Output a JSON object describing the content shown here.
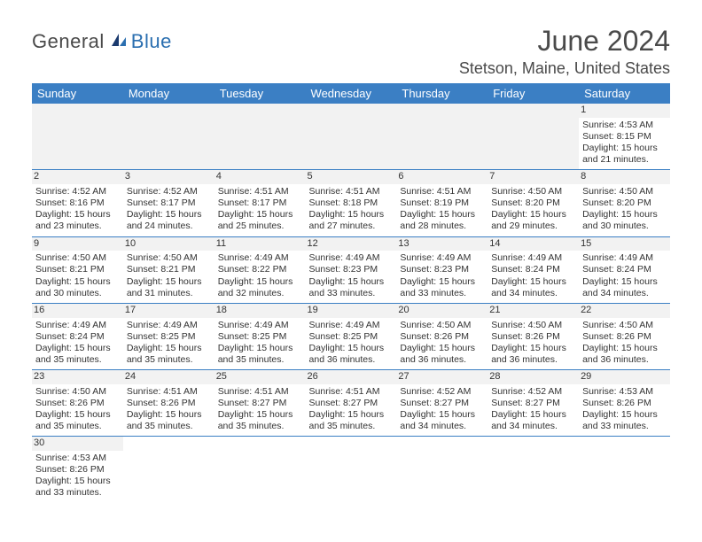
{
  "logo": {
    "text1": "General",
    "text2": "Blue"
  },
  "title": "June 2024",
  "location": "Stetson, Maine, United States",
  "header_bg": "#3b7fc4",
  "header_fg": "#ffffff",
  "stripe_bg": "#f2f2f2",
  "rule_color": "#3b7fc4",
  "days_of_week": [
    "Sunday",
    "Monday",
    "Tuesday",
    "Wednesday",
    "Thursday",
    "Friday",
    "Saturday"
  ],
  "labels": {
    "sunrise": "Sunrise:",
    "sunset": "Sunset:",
    "daylight": "Daylight:",
    "hours": "hours",
    "and": "and",
    "minutes": "minutes."
  },
  "weeks": [
    [
      {
        "empty": true
      },
      {
        "empty": true
      },
      {
        "empty": true
      },
      {
        "empty": true
      },
      {
        "empty": true
      },
      {
        "empty": true
      },
      {
        "n": "1",
        "sunrise": "4:53 AM",
        "sunset": "8:15 PM",
        "dl_h": "15",
        "dl_m": "21"
      }
    ],
    [
      {
        "n": "2",
        "sunrise": "4:52 AM",
        "sunset": "8:16 PM",
        "dl_h": "15",
        "dl_m": "23"
      },
      {
        "n": "3",
        "sunrise": "4:52 AM",
        "sunset": "8:17 PM",
        "dl_h": "15",
        "dl_m": "24"
      },
      {
        "n": "4",
        "sunrise": "4:51 AM",
        "sunset": "8:17 PM",
        "dl_h": "15",
        "dl_m": "25"
      },
      {
        "n": "5",
        "sunrise": "4:51 AM",
        "sunset": "8:18 PM",
        "dl_h": "15",
        "dl_m": "27"
      },
      {
        "n": "6",
        "sunrise": "4:51 AM",
        "sunset": "8:19 PM",
        "dl_h": "15",
        "dl_m": "28"
      },
      {
        "n": "7",
        "sunrise": "4:50 AM",
        "sunset": "8:20 PM",
        "dl_h": "15",
        "dl_m": "29"
      },
      {
        "n": "8",
        "sunrise": "4:50 AM",
        "sunset": "8:20 PM",
        "dl_h": "15",
        "dl_m": "30"
      }
    ],
    [
      {
        "n": "9",
        "sunrise": "4:50 AM",
        "sunset": "8:21 PM",
        "dl_h": "15",
        "dl_m": "30"
      },
      {
        "n": "10",
        "sunrise": "4:50 AM",
        "sunset": "8:21 PM",
        "dl_h": "15",
        "dl_m": "31"
      },
      {
        "n": "11",
        "sunrise": "4:49 AM",
        "sunset": "8:22 PM",
        "dl_h": "15",
        "dl_m": "32"
      },
      {
        "n": "12",
        "sunrise": "4:49 AM",
        "sunset": "8:23 PM",
        "dl_h": "15",
        "dl_m": "33"
      },
      {
        "n": "13",
        "sunrise": "4:49 AM",
        "sunset": "8:23 PM",
        "dl_h": "15",
        "dl_m": "33"
      },
      {
        "n": "14",
        "sunrise": "4:49 AM",
        "sunset": "8:24 PM",
        "dl_h": "15",
        "dl_m": "34"
      },
      {
        "n": "15",
        "sunrise": "4:49 AM",
        "sunset": "8:24 PM",
        "dl_h": "15",
        "dl_m": "34"
      }
    ],
    [
      {
        "n": "16",
        "sunrise": "4:49 AM",
        "sunset": "8:24 PM",
        "dl_h": "15",
        "dl_m": "35"
      },
      {
        "n": "17",
        "sunrise": "4:49 AM",
        "sunset": "8:25 PM",
        "dl_h": "15",
        "dl_m": "35"
      },
      {
        "n": "18",
        "sunrise": "4:49 AM",
        "sunset": "8:25 PM",
        "dl_h": "15",
        "dl_m": "35"
      },
      {
        "n": "19",
        "sunrise": "4:49 AM",
        "sunset": "8:25 PM",
        "dl_h": "15",
        "dl_m": "36"
      },
      {
        "n": "20",
        "sunrise": "4:50 AM",
        "sunset": "8:26 PM",
        "dl_h": "15",
        "dl_m": "36"
      },
      {
        "n": "21",
        "sunrise": "4:50 AM",
        "sunset": "8:26 PM",
        "dl_h": "15",
        "dl_m": "36"
      },
      {
        "n": "22",
        "sunrise": "4:50 AM",
        "sunset": "8:26 PM",
        "dl_h": "15",
        "dl_m": "36"
      }
    ],
    [
      {
        "n": "23",
        "sunrise": "4:50 AM",
        "sunset": "8:26 PM",
        "dl_h": "15",
        "dl_m": "35"
      },
      {
        "n": "24",
        "sunrise": "4:51 AM",
        "sunset": "8:26 PM",
        "dl_h": "15",
        "dl_m": "35"
      },
      {
        "n": "25",
        "sunrise": "4:51 AM",
        "sunset": "8:27 PM",
        "dl_h": "15",
        "dl_m": "35"
      },
      {
        "n": "26",
        "sunrise": "4:51 AM",
        "sunset": "8:27 PM",
        "dl_h": "15",
        "dl_m": "35"
      },
      {
        "n": "27",
        "sunrise": "4:52 AM",
        "sunset": "8:27 PM",
        "dl_h": "15",
        "dl_m": "34"
      },
      {
        "n": "28",
        "sunrise": "4:52 AM",
        "sunset": "8:27 PM",
        "dl_h": "15",
        "dl_m": "34"
      },
      {
        "n": "29",
        "sunrise": "4:53 AM",
        "sunset": "8:26 PM",
        "dl_h": "15",
        "dl_m": "33"
      }
    ],
    [
      {
        "n": "30",
        "sunrise": "4:53 AM",
        "sunset": "8:26 PM",
        "dl_h": "15",
        "dl_m": "33"
      },
      {
        "empty": true
      },
      {
        "empty": true
      },
      {
        "empty": true
      },
      {
        "empty": true
      },
      {
        "empty": true
      },
      {
        "empty": true
      }
    ]
  ]
}
